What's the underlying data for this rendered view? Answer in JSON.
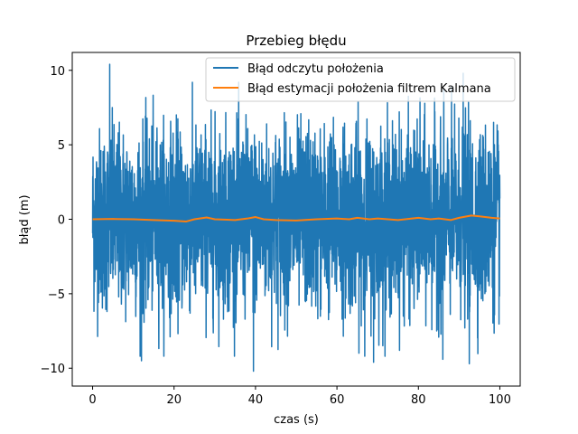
{
  "chart_data": {
    "type": "line",
    "title": "Przebieg błędu",
    "xlabel": "czas (s)",
    "ylabel": "błąd (m)",
    "xlim": [
      -5,
      105
    ],
    "ylim": [
      -11.2,
      11.2
    ],
    "xticks": [
      0,
      20,
      40,
      60,
      80,
      100
    ],
    "xtick_labels": [
      "0",
      "20",
      "40",
      "60",
      "80",
      "100"
    ],
    "yticks": [
      -10,
      -5,
      0,
      5,
      10
    ],
    "ytick_labels": [
      "−10",
      "−5",
      "0",
      "5",
      "10"
    ],
    "grid": false,
    "legend_position": "upper right",
    "series": [
      {
        "name": "Błąd odczytu położenia",
        "color": "#1f77b4",
        "style": "dense noise, std ≈ 3 m",
        "x_range": [
          0,
          100
        ],
        "notable_peaks": [
          {
            "x": 4.2,
            "y": 10.4
          },
          {
            "x": 39.5,
            "y": -10.2
          },
          {
            "x": 12.0,
            "y": -9.5
          },
          {
            "x": 69.0,
            "y": -9.6
          },
          {
            "x": 86.0,
            "y": -9.4
          },
          {
            "x": 92.5,
            "y": -9.7
          },
          {
            "x": 91.0,
            "y": 9.8
          }
        ]
      },
      {
        "name": "Błąd estymacji położenia filtrem Kalmana",
        "color": "#ff7f0e",
        "x": [
          0,
          5,
          10,
          15,
          20,
          23,
          25,
          28,
          30,
          35,
          38,
          40,
          42,
          45,
          50,
          55,
          60,
          63,
          65,
          68,
          70,
          75,
          80,
          83,
          85,
          88,
          90,
          93,
          95,
          98,
          100
        ],
        "y": [
          0.0,
          0.02,
          0.0,
          -0.05,
          -0.1,
          -0.15,
          0.0,
          0.12,
          0.0,
          -0.05,
          0.05,
          0.15,
          0.0,
          -0.05,
          -0.08,
          0.0,
          0.05,
          0.0,
          0.1,
          0.0,
          0.05,
          -0.05,
          0.1,
          0.0,
          0.05,
          -0.05,
          0.1,
          0.25,
          0.2,
          0.1,
          0.05
        ]
      }
    ]
  }
}
